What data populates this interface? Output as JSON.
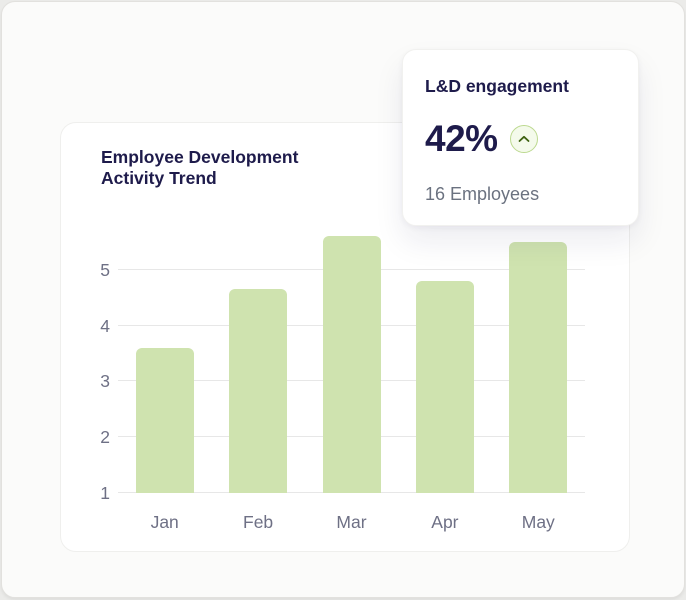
{
  "chart_card": {
    "title_line1": "Employee Development",
    "title_line2": "Activity Trend"
  },
  "engagement_card": {
    "title": "L&D engagement",
    "value": "42%",
    "subtitle": "16 Employees",
    "trend_icon": "chevron-up-icon"
  },
  "chart_data": {
    "type": "bar",
    "title": "Employee Development Activity Trend",
    "categories": [
      "Jan",
      "Feb",
      "Mar",
      "Apr",
      "May"
    ],
    "values": [
      3.6,
      4.65,
      5.6,
      4.8,
      5.5
    ],
    "xlabel": "",
    "ylabel": "",
    "ylim": [
      1,
      6
    ],
    "yticks": [
      1,
      2,
      3,
      4,
      5
    ],
    "grid": true,
    "legend": false,
    "bar_color": "#cfe3af"
  },
  "colors": {
    "accent_green": "#cfe3af",
    "dark_navy": "#1e1b4b",
    "muted_text": "#6e7085",
    "badge_border": "#bcd98f",
    "badge_bg": "#f4faeb",
    "chevron_green": "#3f6212"
  }
}
